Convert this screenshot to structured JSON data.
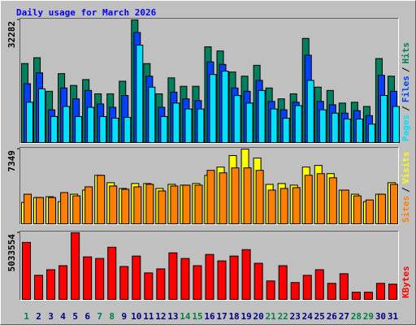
{
  "title": "Daily usage for March 2026",
  "legend_separator": "/",
  "chart_data": [
    {
      "type": "bar",
      "ylim": [
        0,
        32282
      ],
      "yticks": [
        32282
      ],
      "series": [
        {
          "name": "Hits",
          "color": "#00805c",
          "values": [
            20870,
            22400,
            13620,
            18230,
            15150,
            16690,
            12960,
            12960,
            16250,
            32282,
            20860,
            12960,
            17130,
            14930,
            14930,
            25250,
            24160,
            18670,
            17570,
            20420,
            14490,
            11640,
            12960,
            27450,
            14710,
            13840,
            10540,
            10760,
            9660,
            22180,
            17570
          ]
        },
        {
          "name": "Files",
          "color": "#0040ff",
          "values": [
            15600,
            18450,
            8780,
            14490,
            11640,
            13840,
            10320,
            9440,
            12520,
            28990,
            17570,
            9440,
            13400,
            11640,
            11200,
            21300,
            20640,
            14490,
            13620,
            16470,
            10980,
            8780,
            10760,
            23060,
            10980,
            10100,
            7910,
            8560,
            7250,
            17790,
            13620
          ]
        },
        {
          "name": "Pages",
          "color": "#00e0ff",
          "values": [
            10760,
            14270,
            7030,
            9660,
            7030,
            9440,
            7030,
            6590,
            6810,
            25690,
            14710,
            7030,
            10540,
            9000,
            9000,
            18010,
            18890,
            12520,
            10540,
            13840,
            9000,
            6590,
            9880,
            16470,
            8780,
            7910,
            6370,
            6370,
            5050,
            12520,
            9660
          ]
        }
      ]
    },
    {
      "type": "bar",
      "ylim": [
        0,
        7349
      ],
      "yticks": [
        7349
      ],
      "series": [
        {
          "name": "Visits",
          "color": "#ffff00",
          "values": [
            2160,
            2640,
            2720,
            2240,
            2960,
            3360,
            4800,
            4080,
            3520,
            4000,
            4000,
            3520,
            3920,
            3840,
            4000,
            4800,
            5600,
            6720,
            7349,
            6480,
            3920,
            4000,
            3840,
            5600,
            5760,
            4960,
            3360,
            2960,
            2240,
            2960,
            4080
          ]
        },
        {
          "name": "Sites",
          "color": "#ff8000",
          "values": [
            2960,
            2640,
            2640,
            3120,
            2800,
            3680,
            4800,
            3760,
            3440,
            3680,
            3920,
            3280,
            3760,
            3840,
            3840,
            5280,
            5040,
            5520,
            5520,
            5280,
            3360,
            3520,
            3600,
            4800,
            4960,
            4560,
            3360,
            2800,
            2400,
            2960,
            3920
          ]
        }
      ]
    },
    {
      "type": "bar",
      "ylim": [
        0,
        5033554
      ],
      "yticks": [
        5033554
      ],
      "categories": [
        "1",
        "2",
        "3",
        "4",
        "5",
        "6",
        "7",
        "8",
        "9",
        "10",
        "11",
        "12",
        "13",
        "14",
        "15",
        "16",
        "17",
        "18",
        "19",
        "20",
        "21",
        "22",
        "23",
        "24",
        "25",
        "26",
        "27",
        "28",
        "29",
        "30",
        "31"
      ],
      "category_colors": [
        "#008040",
        "#000080",
        "#000080",
        "#000080",
        "#000080",
        "#000080",
        "#008040",
        "#008040",
        "#000080",
        "#000080",
        "#000080",
        "#000080",
        "#000080",
        "#008040",
        "#008040",
        "#000080",
        "#000080",
        "#000080",
        "#000080",
        "#000080",
        "#008040",
        "#008040",
        "#000080",
        "#000080",
        "#000080",
        "#000080",
        "#000080",
        "#008040",
        "#008040",
        "#000080",
        "#000080"
      ],
      "series": [
        {
          "name": "KBytes",
          "color": "#ff0000",
          "values": [
            4314000,
            1858000,
            2277000,
            2577000,
            5033554,
            3236000,
            3116000,
            3955000,
            2517000,
            3296000,
            2037000,
            2337000,
            3535000,
            3116000,
            2577000,
            3416000,
            2936000,
            3296000,
            3775000,
            2756000,
            1438000,
            2577000,
            1318000,
            1858000,
            2277000,
            1258000,
            1977000,
            599000,
            599000,
            1258000,
            1198000
          ]
        }
      ]
    }
  ]
}
